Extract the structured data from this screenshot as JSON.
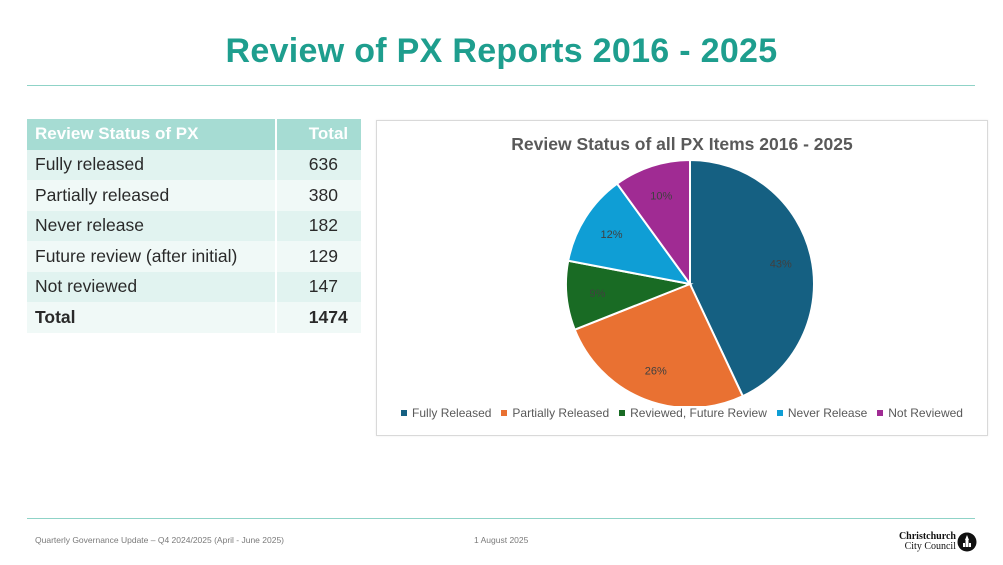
{
  "page": {
    "title": "Review of PX Reports 2016 - 2025"
  },
  "table": {
    "headers": [
      "Review Status of PX",
      "Total"
    ],
    "rows": [
      {
        "label": "Fully released",
        "value": "636"
      },
      {
        "label": "Partially released",
        "value": "380"
      },
      {
        "label": "Never release",
        "value": "182"
      },
      {
        "label": "Future review (after initial)",
        "value": "129"
      },
      {
        "label": "Not reviewed",
        "value": "147"
      }
    ],
    "total": {
      "label": "Total",
      "value": "1474"
    },
    "colors": {
      "header": "#a6dcd3",
      "row_a": "#e1f3f0",
      "row_b": "#f0f9f7"
    }
  },
  "chart_data": {
    "type": "pie",
    "title": "Review Status of all PX Items 2016 - 2025",
    "legend_position": "bottom",
    "slices": [
      {
        "name": "Fully Released",
        "value": 43,
        "label": "43%",
        "color": "#156082"
      },
      {
        "name": "Partially Released",
        "value": 26,
        "label": "26%",
        "color": "#e97132"
      },
      {
        "name": "Reviewed, Future Review",
        "value": 9,
        "label": "9%",
        "color": "#196b24"
      },
      {
        "name": "Never Release",
        "value": 12,
        "label": "12%",
        "color": "#0f9ed5"
      },
      {
        "name": "Not Reviewed",
        "value": 10,
        "label": "10%",
        "color": "#a02b93"
      }
    ]
  },
  "footer": {
    "left": "Quarterly Governance Update – Q4 2024/2025 (April - June 2025)",
    "date": "1 August 2025",
    "logo_line1": "Christchurch",
    "logo_line2": "City Council"
  },
  "colors": {
    "accent": "#1e9e8e",
    "rule": "#8fd3c7"
  }
}
